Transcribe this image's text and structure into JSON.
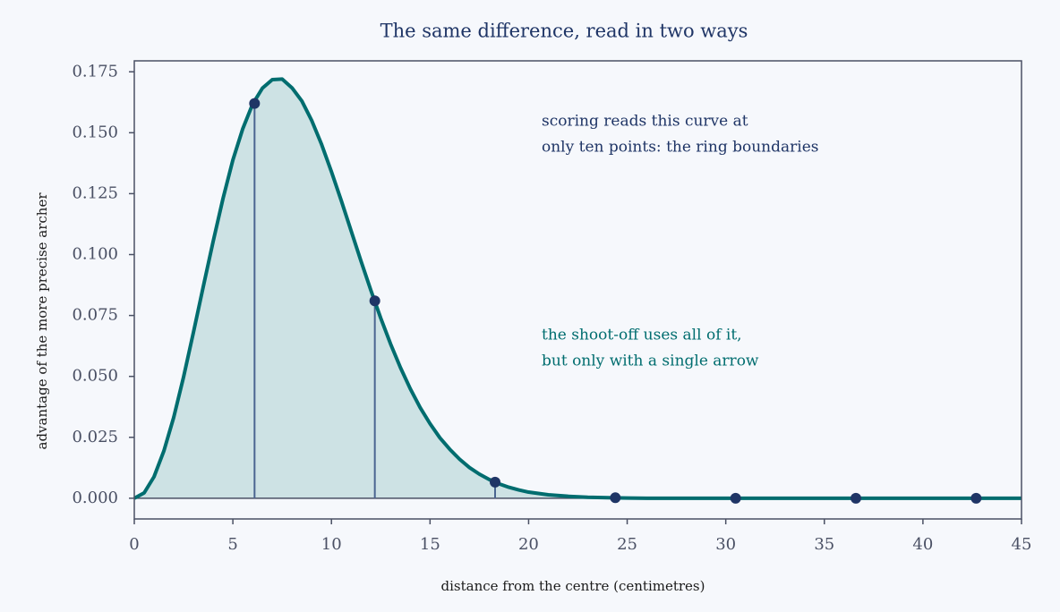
{
  "chart_data": {
    "type": "line",
    "title": "The same difference, read in two ways",
    "xlabel": "distance from the centre (centimetres)",
    "ylabel": "advantage of the more precise archer",
    "x": [
      0,
      0.5,
      1,
      1.5,
      2,
      2.5,
      3,
      3.5,
      4,
      4.5,
      5,
      5.5,
      6,
      6.5,
      7,
      7.5,
      8,
      8.5,
      9,
      9.5,
      10,
      10.5,
      11,
      11.5,
      12,
      12.5,
      13,
      13.5,
      14,
      14.5,
      15,
      15.5,
      16,
      16.5,
      17,
      17.5,
      18,
      18.5,
      19,
      19.5,
      20,
      21,
      22,
      23,
      24,
      25,
      26,
      27,
      28,
      29,
      30,
      31,
      32,
      33,
      34,
      35,
      36,
      37,
      38,
      39,
      40,
      41,
      42,
      43,
      44,
      45
    ],
    "values": [
      0,
      0.0022,
      0.0088,
      0.0194,
      0.0332,
      0.0498,
      0.0681,
      0.0869,
      0.1054,
      0.123,
      0.1388,
      0.1516,
      0.1617,
      0.1683,
      0.1718,
      0.172,
      0.1684,
      0.163,
      0.155,
      0.1452,
      0.134,
      0.1221,
      0.1097,
      0.0973,
      0.0853,
      0.0739,
      0.0633,
      0.0536,
      0.0449,
      0.0372,
      0.0306,
      0.0248,
      0.0201,
      0.016,
      0.0126,
      0.0099,
      0.0077,
      0.0059,
      0.0045,
      0.0034,
      0.0025,
      0.0014,
      0.0008,
      0.0004,
      0.0002,
      0.0001,
      0,
      0,
      0,
      0,
      0,
      0,
      0,
      0,
      0,
      0,
      0,
      0,
      0,
      0,
      0,
      0,
      0,
      0,
      0,
      0
    ],
    "color": "#006d6f",
    "fill_color": "#cde2e4",
    "markers": {
      "x": [
        6.1,
        12.2,
        18.3,
        24.4,
        30.5,
        36.6,
        42.7
      ],
      "values": [
        0.162,
        0.081,
        0.0066,
        0.0002,
        0,
        0,
        0
      ],
      "color": "#1f3566",
      "stem_color": "#4a6590"
    },
    "xlim": [
      0,
      45
    ],
    "ylim": [
      -0.0085,
      0.1795
    ],
    "xticks": [
      0,
      5,
      10,
      15,
      20,
      25,
      30,
      35,
      40,
      45
    ],
    "yticks": [
      {
        "value": 0,
        "label": "0.000"
      },
      0.025,
      {
        "value": 0.05,
        "label": "0.050"
      },
      0.075,
      {
        "value": 0.1,
        "label": "0.100"
      },
      0.125,
      {
        "value": 0.15,
        "label": "0.150"
      },
      0.175
    ],
    "annotations": [
      {
        "lines": [
          "scoring reads this curve at",
          "only ten points: the ring boundaries"
        ],
        "color": "#1f3566"
      },
      {
        "lines": [
          "the shoot-off uses all of it,",
          "but only with a single arrow"
        ],
        "color": "#006d6f"
      }
    ]
  }
}
